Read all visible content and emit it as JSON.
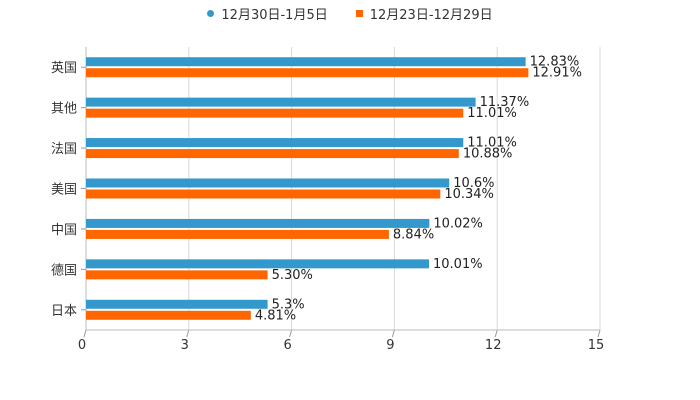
{
  "chart_data": {
    "type": "bar",
    "orientation": "horizontal",
    "categories": [
      "英国",
      "其他",
      "法国",
      "美国",
      "中国",
      "德国",
      "日本"
    ],
    "series": [
      {
        "name": "12月30日-1月5日",
        "color": "#3399cc",
        "marker": "circle",
        "values": [
          12.83,
          11.37,
          11.01,
          10.6,
          10.02,
          10.01,
          5.3
        ],
        "labels": [
          "12.83%",
          "11.37%",
          "11.01%",
          "10.6%",
          "10.02%",
          "10.01%",
          "5.3%"
        ]
      },
      {
        "name": "12月23日-12月29日",
        "color": "#ff6600",
        "marker": "square",
        "values": [
          12.91,
          11.01,
          10.88,
          10.34,
          8.84,
          5.3,
          4.81
        ],
        "labels": [
          "12.91%",
          "11.01%",
          "10.88%",
          "10.34%",
          "8.84%",
          "5.30%",
          "4.81%"
        ]
      }
    ],
    "xlim": [
      0,
      15
    ],
    "xticks": [
      "0",
      "3",
      "6",
      "9",
      "12",
      "15"
    ],
    "grid": true,
    "legend": "top-center"
  }
}
